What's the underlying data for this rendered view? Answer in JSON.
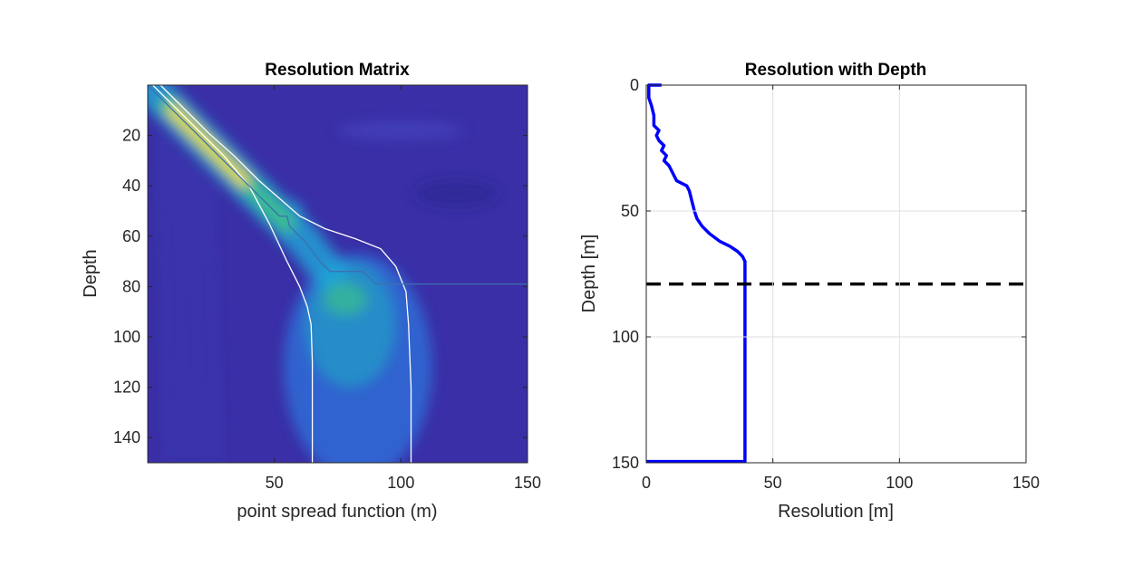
{
  "chart_data": [
    {
      "type": "heatmap",
      "title": "Resolution Matrix",
      "xlabel": "point spread function (m)",
      "ylabel": "Depth",
      "xlim": [
        0,
        150
      ],
      "ylim": [
        0,
        150
      ],
      "y_reversed": true,
      "xticks": [
        50,
        100,
        150
      ],
      "yticks": [
        20,
        40,
        60,
        80,
        100,
        120,
        140
      ],
      "grid": false,
      "colormap": "parula",
      "colors": {
        "low": "#3a2fa6",
        "mid": "#19a8dc",
        "high": "#f2de3a",
        "contour": "#ffffff",
        "peak_line": "#3d6fb0"
      },
      "contour_left": {
        "x": [
          2,
          10,
          20,
          30,
          40,
          48,
          55,
          60,
          63,
          64.5,
          65,
          65,
          65
        ],
        "y": [
          0,
          8,
          18,
          28,
          40,
          55,
          70,
          80,
          88,
          95,
          110,
          130,
          150
        ]
      },
      "contour_right": {
        "x": [
          5,
          14,
          24,
          34,
          44,
          52,
          60,
          70,
          82,
          92,
          98,
          102,
          103,
          104,
          104
        ],
        "y": [
          0,
          9,
          19,
          28,
          38,
          45,
          52,
          57,
          61,
          65,
          72,
          82,
          95,
          120,
          150
        ]
      },
      "peak_line": {
        "x": [
          0,
          5,
          10,
          15,
          20,
          25,
          30,
          35,
          40,
          45,
          50,
          52,
          55,
          56,
          58,
          62,
          65,
          68,
          72,
          75,
          80,
          85,
          90,
          150
        ],
        "y": [
          0,
          5,
          10,
          15,
          20,
          25,
          30,
          35,
          40,
          45,
          50,
          52,
          52,
          56,
          58,
          62,
          66,
          70,
          74,
          74,
          74,
          74,
          79,
          79
        ]
      }
    },
    {
      "type": "line",
      "title": "Resolution with Depth",
      "xlabel": "Resolution [m]",
      "ylabel": "Depth [m]",
      "xlim": [
        0,
        150
      ],
      "ylim": [
        0,
        150
      ],
      "y_reversed": true,
      "xticks": [
        0,
        50,
        100,
        150
      ],
      "yticks": [
        0,
        50,
        100,
        150
      ],
      "grid": true,
      "series": [
        {
          "color": "#0000ff",
          "x": [
            6,
            1,
            1,
            2,
            3,
            3,
            5,
            4,
            5,
            7,
            6,
            8,
            7,
            9,
            10,
            11,
            12,
            14,
            16,
            17,
            17.5,
            18,
            18.5,
            19,
            20,
            22,
            25,
            29,
            33,
            36,
            38,
            39,
            39,
            39,
            39,
            39,
            39,
            39,
            39,
            39,
            39,
            0
          ],
          "y": [
            0,
            0,
            5,
            8,
            12,
            16,
            18,
            20,
            22,
            24,
            26,
            28,
            30,
            32,
            34,
            36,
            38,
            39,
            40,
            42,
            44,
            46,
            48,
            50,
            53,
            56,
            59,
            62,
            64,
            66,
            68,
            70,
            80,
            90,
            100,
            110,
            120,
            130,
            140,
            148,
            149.5,
            149.5
          ]
        },
        {
          "color": "#000000",
          "style": "dashed",
          "x": [
            0,
            150
          ],
          "y": [
            79,
            79
          ]
        }
      ]
    }
  ]
}
